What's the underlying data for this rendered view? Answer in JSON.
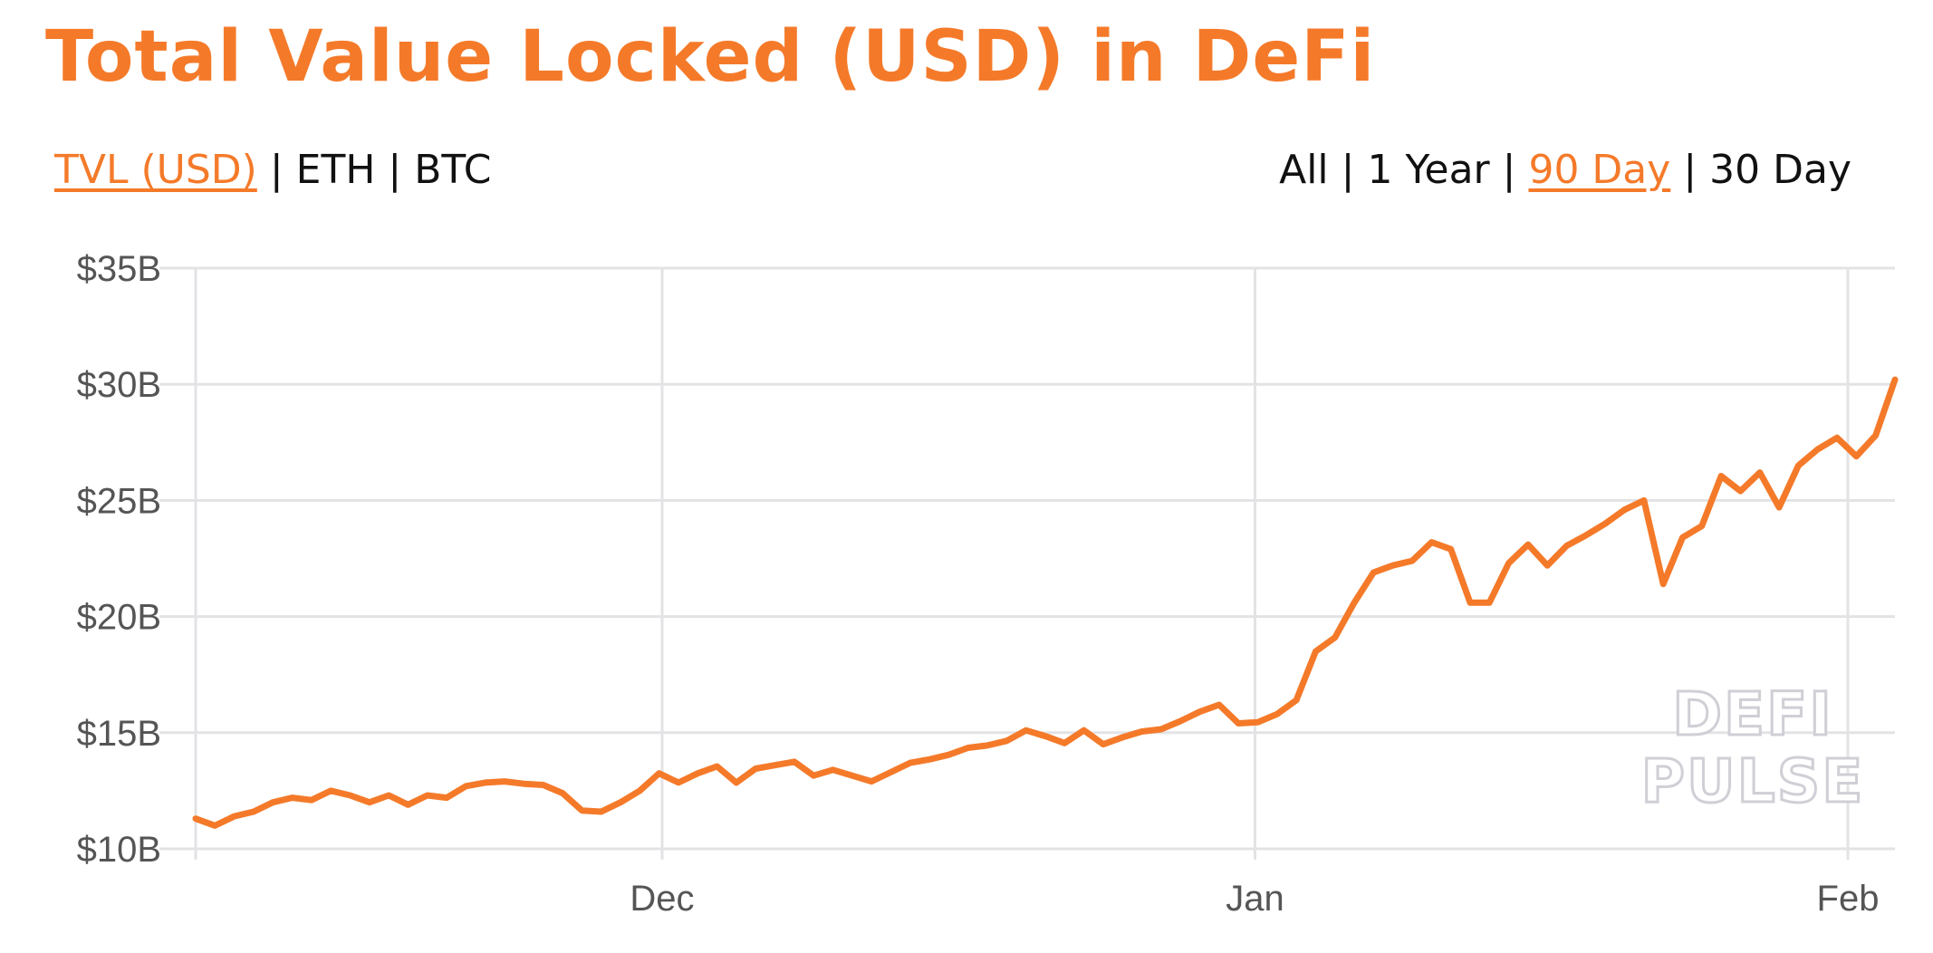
{
  "title": "Total Value Locked (USD) in DeFi",
  "metric_tabs": [
    {
      "label": "TVL (USD)",
      "active": true
    },
    {
      "label": "ETH",
      "active": false
    },
    {
      "label": "BTC",
      "active": false
    }
  ],
  "range_tabs": [
    {
      "label": "All",
      "active": false
    },
    {
      "label": "1 Year",
      "active": false
    },
    {
      "label": "90 Day",
      "active": true
    },
    {
      "label": "30 Day",
      "active": false
    }
  ],
  "separator": "|",
  "watermark": {
    "line1": "DEFI",
    "line2": "PULSE"
  },
  "colors": {
    "accent": "#f47a2a",
    "grid": "#e3e3e6",
    "tick_text": "#555555"
  },
  "chart_data": {
    "type": "line",
    "title": "Total Value Locked (USD) in DeFi",
    "xlabel": "",
    "ylabel": "",
    "x_ticks": [
      {
        "label": "Dec",
        "day": 23
      },
      {
        "label": "Jan",
        "day": 54
      },
      {
        "label": "Feb",
        "day": 85
      }
    ],
    "y_ticks": [
      "$10B",
      "$15B",
      "$20B",
      "$25B",
      "$30B",
      "$35B"
    ],
    "ylim": [
      10,
      35
    ],
    "y_unit": "B USD",
    "grid": true,
    "legend": "none",
    "series": [
      {
        "values": [
          11.3,
          11.0,
          11.4,
          11.6,
          12.0,
          12.2,
          12.1,
          12.5,
          12.3,
          12.0,
          12.3,
          11.9,
          12.3,
          12.2,
          12.7,
          12.85,
          12.9,
          12.8,
          12.75,
          12.4,
          11.65,
          11.6,
          12.0,
          12.5,
          13.25,
          12.85,
          13.25,
          13.55,
          12.85,
          13.45,
          13.6,
          13.75,
          13.15,
          13.4,
          13.15,
          12.9,
          13.3,
          13.7,
          13.85,
          14.05,
          14.35,
          14.45,
          14.65,
          15.1,
          14.85,
          14.55,
          15.1,
          14.5,
          14.8,
          15.05,
          15.15,
          15.5,
          15.9,
          16.2,
          15.4,
          15.45,
          15.8,
          16.4,
          18.5,
          19.1,
          20.6,
          21.9,
          22.2,
          22.4,
          23.2,
          22.9,
          20.6,
          20.6,
          22.3,
          23.1,
          22.2,
          23.05,
          23.5,
          24.0,
          24.6,
          25.0,
          21.4,
          23.4,
          23.9,
          26.05,
          25.4,
          26.2,
          24.7,
          26.5,
          27.2,
          27.7,
          26.9,
          27.8,
          30.2
        ]
      }
    ]
  }
}
